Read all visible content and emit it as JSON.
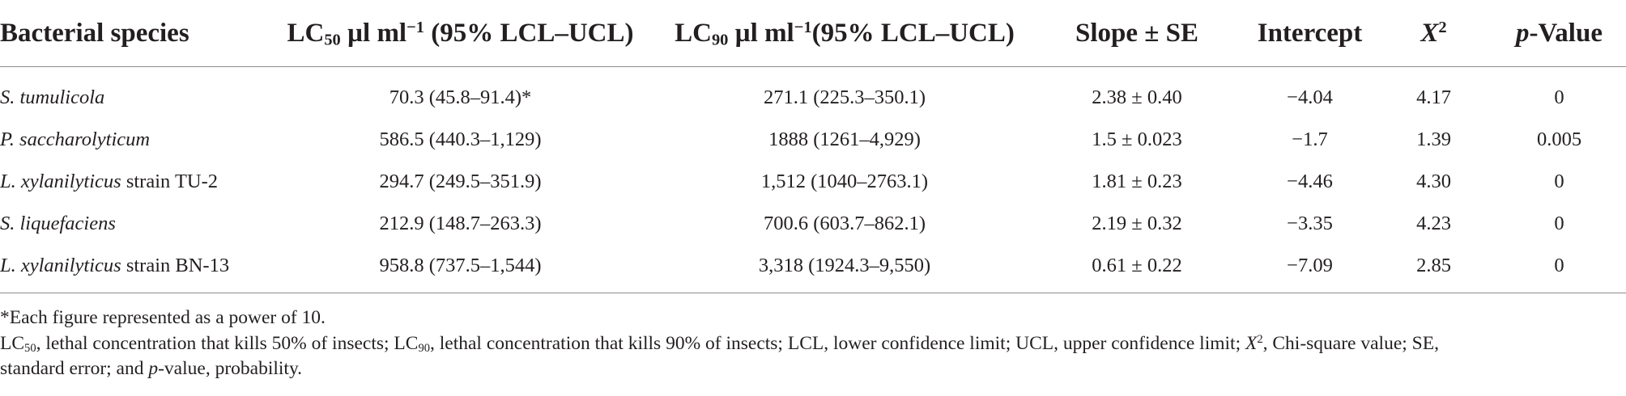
{
  "table": {
    "headers": [
      {
        "text": "Bacterial species"
      },
      {
        "pre": "LC",
        "sub": "50",
        "post": " µl ml",
        "sup": "−1",
        "tail": " (95% LCL–UCL)"
      },
      {
        "pre": "LC",
        "sub": "90",
        "post": " µl ml",
        "sup": "−1",
        "tail": "(95% LCL–UCL)"
      },
      {
        "text": "Slope ± SE"
      },
      {
        "text": "Intercept"
      },
      {
        "italic": "X",
        "sup": "2"
      },
      {
        "italic": "p",
        "tail": "-Value"
      }
    ],
    "rows": [
      {
        "species_italic": "S. tumulicola",
        "species_rest": "",
        "lc50": "70.3 (45.8–91.4)*",
        "lc90": "271.1 (225.3–350.1)",
        "slope": "2.38 ± 0.40",
        "intercept": "−4.04",
        "x2": "4.17",
        "p": "0"
      },
      {
        "species_italic": "P. saccharolyticum",
        "species_rest": "",
        "lc50": "586.5 (440.3–1,129)",
        "lc90": "1888 (1261–4,929)",
        "slope": "1.5 ± 0.023",
        "intercept": "−1.7",
        "x2": "1.39",
        "p": "0.005"
      },
      {
        "species_italic": "L. xylanilyticus",
        "species_rest": " strain TU-2",
        "lc50": "294.7 (249.5–351.9)",
        "lc90": "1,512 (1040–2763.1)",
        "slope": "1.81 ± 0.23",
        "intercept": "−4.46",
        "x2": "4.30",
        "p": "0"
      },
      {
        "species_italic": "S. liquefaciens",
        "species_rest": "",
        "lc50": "212.9 (148.7–263.3)",
        "lc90": "700.6 (603.7–862.1)",
        "slope": "2.19 ± 0.32",
        "intercept": "−3.35",
        "x2": "4.23",
        "p": "0"
      },
      {
        "species_italic": "L. xylanilyticus",
        "species_rest": " strain BN-13",
        "lc50": "958.8 (737.5–1,544)",
        "lc90": "3,318 (1924.3–9,550)",
        "slope": "0.61 ± 0.22",
        "intercept": "−7.09",
        "x2": "2.85",
        "p": "0"
      }
    ]
  },
  "footnotes": {
    "note1": "*Each figure represented as a power of 10.",
    "n2_a": "LC",
    "n2_a_sub": "50",
    "n2_b": ", lethal concentration that kills 50% of insects; LC",
    "n2_b_sub": "90",
    "n2_c": ", lethal concentration that kills 90% of insects; LCL, lower confidence limit; UCL, upper confidence limit; ",
    "n2_x": "X",
    "n2_x_sup": "2",
    "n2_d": ", Chi-square value; SE,",
    "n3_a": "standard error; and ",
    "n3_p": "p",
    "n3_b": "-value, probability."
  }
}
